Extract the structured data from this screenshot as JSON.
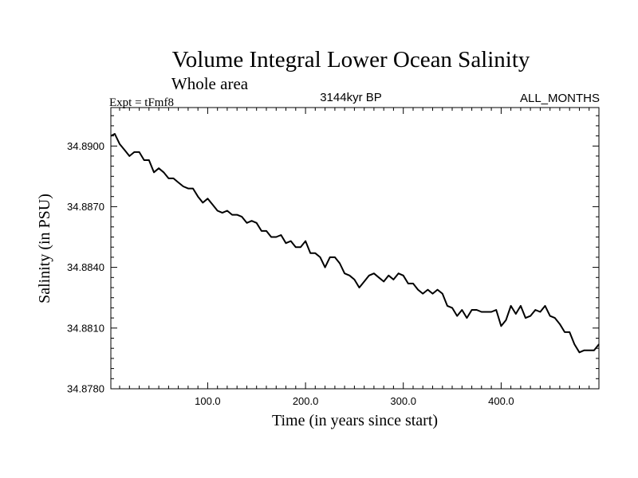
{
  "chart_data": {
    "type": "line",
    "title": "Volume Integral Lower Ocean Salinity",
    "subtitle": "Whole area",
    "experiment_label": "Expt = tFmf8",
    "period_label": "3144kyr BP",
    "months_label": "ALL_MONTHS",
    "xlabel": "Time (in years since start)",
    "ylabel": "Salinity (in PSU)",
    "xlim": [
      1,
      500
    ],
    "ylim": [
      34.878,
      34.8919
    ],
    "x_ticks": [
      {
        "value": 100,
        "label": "100.0"
      },
      {
        "value": 200,
        "label": "200.0"
      },
      {
        "value": 300,
        "label": "300.0"
      },
      {
        "value": 400,
        "label": "400.0"
      }
    ],
    "y_ticks": [
      {
        "value": 34.878,
        "label": "34.8780"
      },
      {
        "value": 34.881,
        "label": "34.8810"
      },
      {
        "value": 34.884,
        "label": "34.8840"
      },
      {
        "value": 34.887,
        "label": "34.8870"
      },
      {
        "value": 34.89,
        "label": "34.8900"
      }
    ],
    "series": [
      {
        "name": "salinity",
        "color": "#000000",
        "x": [
          1,
          5,
          10,
          15,
          20,
          25,
          30,
          35,
          40,
          45,
          50,
          55,
          60,
          65,
          70,
          75,
          80,
          85,
          90,
          95,
          100,
          105,
          110,
          115,
          120,
          125,
          130,
          135,
          140,
          145,
          150,
          155,
          160,
          165,
          170,
          175,
          180,
          185,
          190,
          195,
          200,
          205,
          210,
          215,
          220,
          225,
          230,
          235,
          240,
          245,
          250,
          255,
          260,
          265,
          270,
          275,
          280,
          285,
          290,
          295,
          300,
          305,
          310,
          315,
          320,
          325,
          330,
          335,
          340,
          345,
          350,
          355,
          360,
          365,
          370,
          375,
          380,
          385,
          390,
          395,
          400,
          405,
          410,
          415,
          420,
          425,
          430,
          435,
          440,
          445,
          450,
          455,
          460,
          465,
          470,
          475,
          480,
          485,
          490,
          495,
          500
        ],
        "values": [
          34.8905,
          34.8906,
          34.8901,
          34.8898,
          34.8895,
          34.8897,
          34.8897,
          34.8893,
          34.8893,
          34.8887,
          34.8889,
          34.8887,
          34.8884,
          34.8884,
          34.8882,
          34.888,
          34.8879,
          34.8879,
          34.8875,
          34.8872,
          34.8874,
          34.8871,
          34.8868,
          34.8867,
          34.8868,
          34.8866,
          34.8866,
          34.8865,
          34.8862,
          34.8863,
          34.8862,
          34.8858,
          34.8858,
          34.8855,
          34.8855,
          34.8856,
          34.8852,
          34.8853,
          34.885,
          34.885,
          34.8853,
          34.8847,
          34.8847,
          34.8845,
          34.884,
          34.8845,
          34.8845,
          34.8842,
          34.8837,
          34.8836,
          34.8834,
          34.883,
          34.8833,
          34.8836,
          34.8837,
          34.8835,
          34.8833,
          34.8836,
          34.8834,
          34.8837,
          34.8836,
          34.8832,
          34.8832,
          34.8829,
          34.8827,
          34.8829,
          34.8827,
          34.8829,
          34.8827,
          34.8821,
          34.882,
          34.8816,
          34.8819,
          34.8815,
          34.8819,
          34.8819,
          34.8818,
          34.8818,
          34.8818,
          34.8819,
          34.8811,
          34.8814,
          34.8821,
          34.8817,
          34.8821,
          34.8815,
          34.8816,
          34.8819,
          34.8818,
          34.8821,
          34.8816,
          34.8815,
          34.8812,
          34.8808,
          34.8808,
          34.8802,
          34.8798,
          34.8799,
          34.8799,
          34.8799,
          34.8802
        ]
      }
    ]
  }
}
